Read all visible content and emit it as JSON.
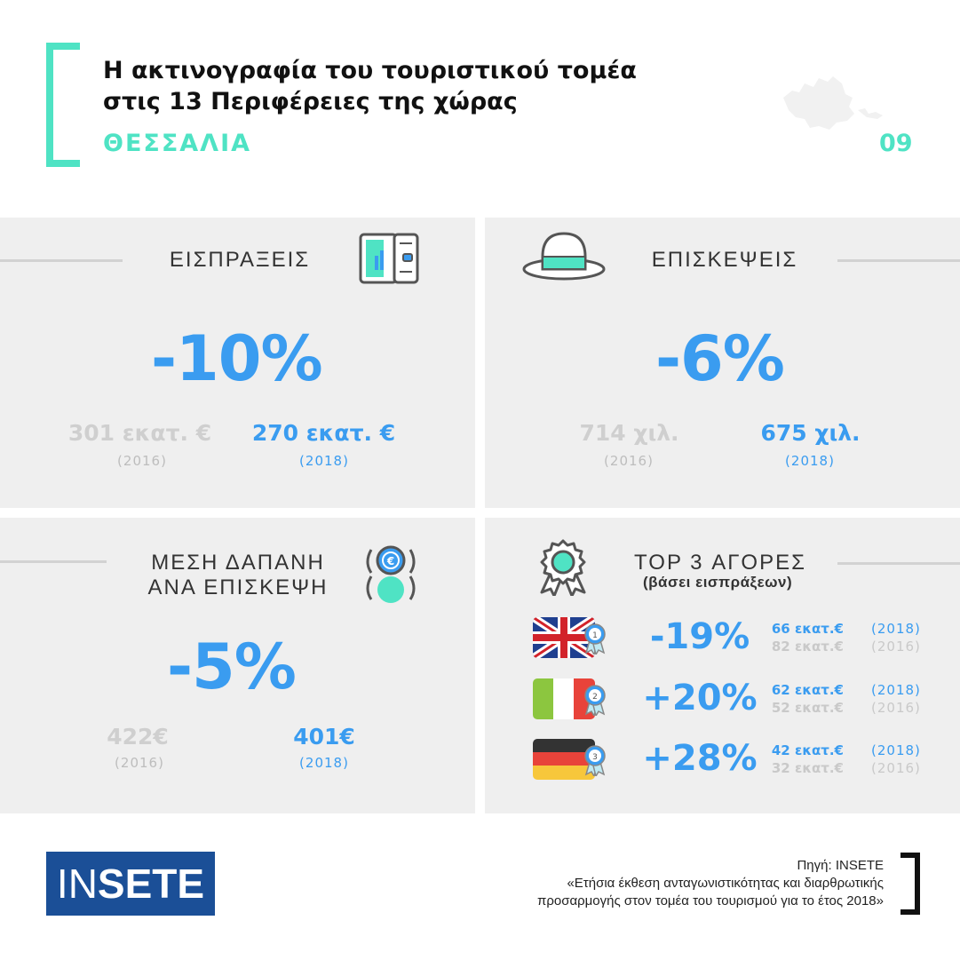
{
  "header": {
    "title_line1": "Η ακτινογραφία του τουριστικού τομέα",
    "title_line2": "στις 13 Περιφέρειες της χώρας",
    "region": "ΘΕΣΣΑΛΙΑ",
    "page_number": "09",
    "accent_color": "#4fe3c4"
  },
  "receipts": {
    "title": "ΕΙΣΠΡΑΞΕΙΣ",
    "change": "-10%",
    "old_value": "301 εκατ. €",
    "old_year": "(2016)",
    "new_value": "270 εκατ. €",
    "new_year": "(2018)"
  },
  "visits": {
    "title": "ΕΠΙΣΚΕΨΕΙΣ",
    "change": "-6%",
    "old_value": "714 χιλ.",
    "old_year": "(2016)",
    "new_value": "675 χιλ.",
    "new_year": "(2018)"
  },
  "spend": {
    "title_line1": "ΜΕΣΗ ΔΑΠΑΝΗ",
    "title_line2": "ΑΝΑ ΕΠΙΣΚΕΨΗ",
    "change": "-5%",
    "old_value": "422€",
    "old_year": "(2016)",
    "new_value": "401€",
    "new_year": "(2018)"
  },
  "markets": {
    "title": "TOP 3 ΑΓΟΡΕΣ",
    "subtitle": "(βάσει εισπράξεων)",
    "rows": [
      {
        "flag": "uk-flag-icon",
        "rank": "1",
        "change": "-19%",
        "new_value": "66 εκατ.€",
        "new_year": "(2018)",
        "old_value": "82 εκατ.€",
        "old_year": "(2016)"
      },
      {
        "flag": "italy-flag-icon",
        "rank": "2",
        "change": "+20%",
        "new_value": "62 εκατ.€",
        "new_year": "(2018)",
        "old_value": "52 εκατ.€",
        "old_year": "(2016)"
      },
      {
        "flag": "germany-flag-icon",
        "rank": "3",
        "change": "+28%",
        "new_value": "42 εκατ.€",
        "new_year": "(2018)",
        "old_value": "32 εκατ.€",
        "old_year": "(2016)"
      }
    ]
  },
  "footer": {
    "logo_thin": "IN",
    "logo_bold": "SETE",
    "source_line1": "Πηγή: INSETE",
    "source_line2": "«Ετήσια έκθεση ανταγωνιστικότητας και διαρθρωτικής",
    "source_line3": "προσαρμογής στον τομέα του τουρισμού για το έτος 2018»"
  },
  "colors": {
    "blue": "#3a9cf0",
    "teal": "#4fe3c4",
    "grey_value": "#cfcfcf",
    "panel_bg": "#efefef",
    "logo_bg": "#1b4f97"
  }
}
